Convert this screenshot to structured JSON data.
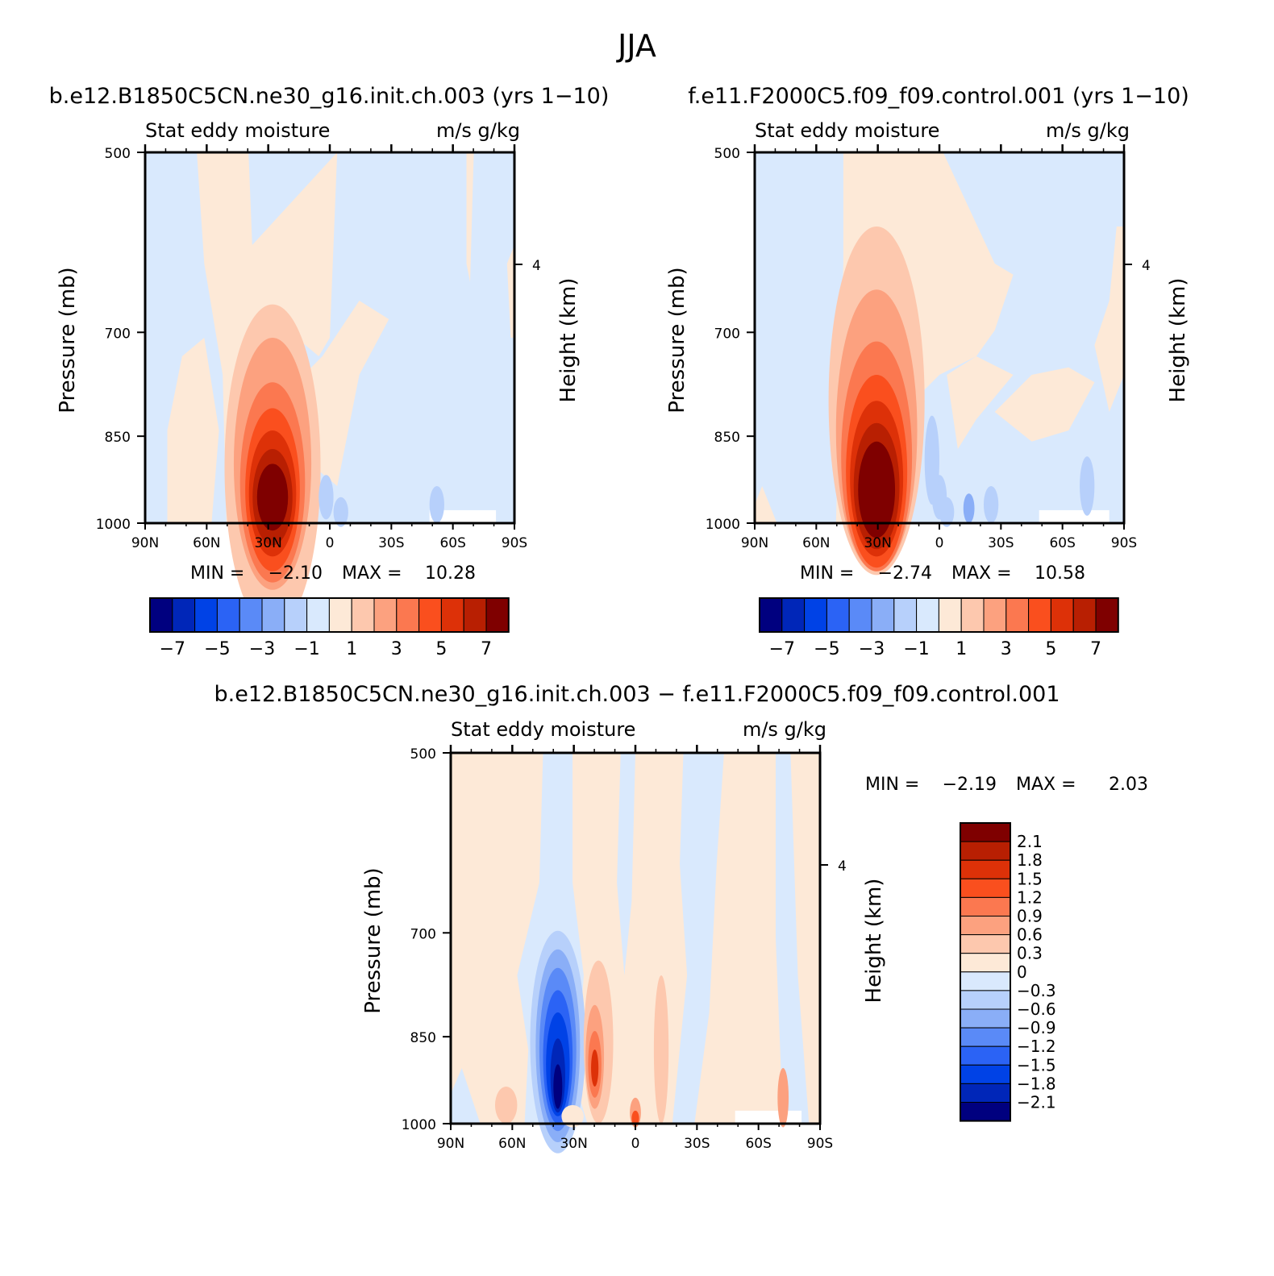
{
  "figure": {
    "title": "JJA",
    "colors": {
      "full": [
        "#00007f",
        "#0026b8",
        "#0042e6",
        "#2b63f5",
        "#5a8af7",
        "#8aaef7",
        "#b7d0fb",
        "#d9e9fd",
        "#fde9d7",
        "#fdc8ae",
        "#fca17f",
        "#fb7850",
        "#fa4f1e",
        "#dd3108",
        "#b81f02",
        "#7f0000"
      ],
      "diff": [
        "#00007f",
        "#0026b8",
        "#0042e6",
        "#2b63f5",
        "#5a8af7",
        "#8aaef7",
        "#b7d0fb",
        "#d9e9fd",
        "#fde9d7",
        "#fdc8ae",
        "#fca17f",
        "#fb7850",
        "#fa4f1e",
        "#dd3108",
        "#b81f02",
        "#7f0000"
      ]
    }
  },
  "chart_data": [
    {
      "type": "heatmap",
      "title": "b.e12.B1850C5CN.ne30_g16.init.ch.003 (yrs 1−10)",
      "subtitle_left": "Stat eddy moisture",
      "subtitle_right": "m/s g/kg",
      "ylabel": "Pressure (mb)",
      "ylabel_right": "Height (km)",
      "x_ticks": [
        "90N",
        "60N",
        "30N",
        "0",
        "30S",
        "60S",
        "90S"
      ],
      "y_ticks": [
        "500",
        "700",
        "850",
        "1000"
      ],
      "y_right_ticks": [
        "4"
      ],
      "min_label": "MIN =",
      "min": "−2.10",
      "max_label": "MAX =",
      "max": "10.28",
      "colorbar_labels": [
        "−7",
        "−5",
        "−3",
        "−1",
        "1",
        "3",
        "5",
        "7"
      ]
    },
    {
      "type": "heatmap",
      "title": "f.e11.F2000C5.f09_f09.control.001 (yrs 1−10)",
      "subtitle_left": "Stat eddy moisture",
      "subtitle_right": "m/s g/kg",
      "ylabel": "Pressure (mb)",
      "ylabel_right": "Height (km)",
      "x_ticks": [
        "90N",
        "60N",
        "30N",
        "0",
        "30S",
        "60S",
        "90S"
      ],
      "y_ticks": [
        "500",
        "700",
        "850",
        "1000"
      ],
      "y_right_ticks": [
        "4"
      ],
      "min_label": "MIN =",
      "min": "−2.74",
      "max_label": "MAX =",
      "max": "10.58",
      "colorbar_labels": [
        "−7",
        "−5",
        "−3",
        "−1",
        "1",
        "3",
        "5",
        "7"
      ]
    },
    {
      "type": "heatmap",
      "title": "b.e12.B1850C5CN.ne30_g16.init.ch.003 − f.e11.F2000C5.f09_f09.control.001",
      "subtitle_left": "Stat eddy moisture",
      "subtitle_right": "m/s g/kg",
      "ylabel": "Pressure (mb)",
      "ylabel_right": "Height (km)",
      "x_ticks": [
        "90N",
        "60N",
        "30N",
        "0",
        "30S",
        "60S",
        "90S"
      ],
      "y_ticks": [
        "500",
        "700",
        "850",
        "1000"
      ],
      "y_right_ticks": [
        "4"
      ],
      "min_label": "MIN =",
      "min": "−2.19",
      "max_label": "MAX =",
      "max": "2.03",
      "colorbar_labels": [
        "2.1",
        "1.8",
        "1.5",
        "1.2",
        "0.9",
        "0.6",
        "0.3",
        "0",
        "−0.3",
        "−0.6",
        "−0.9",
        "−1.2",
        "−1.5",
        "−1.8",
        "−2.1"
      ]
    }
  ]
}
